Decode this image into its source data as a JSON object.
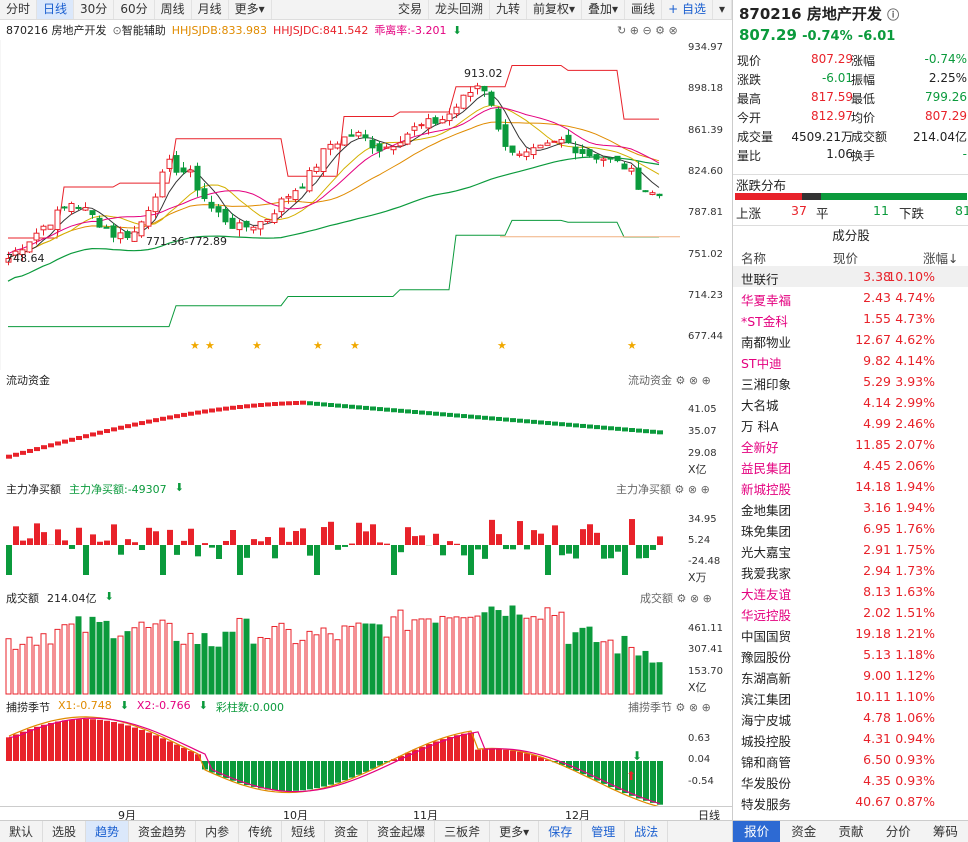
{
  "toolbar": {
    "items": [
      "分时",
      "日线",
      "30分",
      "60分",
      "周线",
      "月线",
      "更多▾"
    ],
    "right_items": [
      "交易",
      "龙头回溯",
      "九转",
      "前复权▾",
      "叠加▾",
      "画线"
    ],
    "add": "自选",
    "active": "日线"
  },
  "main": {
    "name": "870216 房地产开发",
    "assist": "智能辅助",
    "ind1": "HHJSJDB:833.983",
    "ind2": "HHJSJDC:841.542",
    "ind3": "乖离率:-3.201",
    "hi_label": "913.02",
    "lo_label1": "771.36-772.89",
    "lo_label2": "748.64",
    "yticks": [
      "934.97",
      "898.18",
      "861.39",
      "824.60",
      "787.81",
      "751.02",
      "714.23",
      "677.44"
    ]
  },
  "flow": {
    "title": "流动资金",
    "title_r": "流动资金",
    "yticks": [
      "41.05",
      "35.07",
      "29.08"
    ],
    "unit": "X亿"
  },
  "net": {
    "title": "主力净买额",
    "value": "主力净买额:-49307",
    "title_r": "主力净买额",
    "yticks": [
      "34.95",
      "5.24",
      "-24.48"
    ],
    "unit": "X万"
  },
  "vol": {
    "title": "成交额",
    "value": "214.04亿",
    "title_r": "成交额",
    "yticks": [
      "461.11",
      "307.41",
      "153.70"
    ],
    "unit": "X亿"
  },
  "season": {
    "title": "捕捞季节",
    "x1": "X1:-0.748",
    "x2": "X2:-0.766",
    "bars": "彩柱数:0.000",
    "title_r": "捕捞季节",
    "yticks": [
      "0.63",
      "0.04",
      "-0.54"
    ]
  },
  "xaxis": {
    "months": [
      "9月",
      "10月",
      "11月",
      "12月"
    ],
    "right": "日线"
  },
  "bottom": {
    "items": [
      "默认",
      "选股",
      "趋势",
      "资金趋势",
      "内参",
      "传统",
      "短线",
      "资金",
      "资金起爆",
      "三板斧",
      "更多▾"
    ],
    "active": "趋势",
    "right": [
      "保存",
      "管理",
      "战法"
    ]
  },
  "quote": {
    "title": "870216 房地产开发",
    "price": "807.29",
    "pct": "-0.74%",
    "chg": "-6.01",
    "grid": [
      [
        "现价",
        "807.29",
        "涨幅",
        "-0.74%"
      ],
      [
        "涨跌",
        "-6.01",
        "振幅",
        "2.25%"
      ],
      [
        "最高",
        "817.59",
        "最低",
        "799.26"
      ],
      [
        "今开",
        "812.97",
        "均价",
        "807.29"
      ],
      [
        "成交量",
        "4509.21万",
        "成交额",
        "214.04亿"
      ],
      [
        "量比",
        "1.06",
        "换手",
        "-"
      ]
    ],
    "dist_title": "涨跌分布",
    "up_label": "上涨",
    "up": "37",
    "flat_label": "平",
    "flat": "11",
    "down_label": "下跌",
    "down": "81",
    "dist_fracs": [
      37,
      11,
      81
    ]
  },
  "constituents": {
    "title": "成分股",
    "headers": [
      "名称",
      "现价",
      "涨幅↓"
    ],
    "rows": [
      [
        "世联行",
        "3.38",
        "10.10%"
      ],
      [
        "华夏幸福",
        "2.43",
        "4.74%"
      ],
      [
        "*ST金科",
        "1.55",
        "4.73%"
      ],
      [
        "南都物业",
        "12.67",
        "4.62%"
      ],
      [
        "ST中迪",
        "9.82",
        "4.14%"
      ],
      [
        "三湘印象",
        "5.29",
        "3.93%"
      ],
      [
        "大名城",
        "4.14",
        "2.99%"
      ],
      [
        "万  科A",
        "4.99",
        "2.46%"
      ],
      [
        "全新好",
        "11.85",
        "2.07%"
      ],
      [
        "益民集团",
        "4.45",
        "2.06%"
      ],
      [
        "新城控股",
        "14.18",
        "1.94%"
      ],
      [
        "金地集团",
        "3.16",
        "1.94%"
      ],
      [
        "珠免集团",
        "6.95",
        "1.76%"
      ],
      [
        "光大嘉宝",
        "2.91",
        "1.75%"
      ],
      [
        "我爱我家",
        "2.94",
        "1.73%"
      ],
      [
        "大连友谊",
        "8.13",
        "1.63%"
      ],
      [
        "华远控股",
        "2.02",
        "1.51%"
      ],
      [
        "中国国贸",
        "19.18",
        "1.21%"
      ],
      [
        "豫园股份",
        "5.13",
        "1.18%"
      ],
      [
        "东湖高新",
        "9.00",
        "1.12%"
      ],
      [
        "滨江集团",
        "10.11",
        "1.10%"
      ],
      [
        "海宁皮城",
        "4.78",
        "1.06%"
      ],
      [
        "城投控股",
        "4.31",
        "0.94%"
      ],
      [
        "锦和商管",
        "6.50",
        "0.93%"
      ],
      [
        "华发股份",
        "4.35",
        "0.93%"
      ],
      [
        "特发服务",
        "40.67",
        "0.87%"
      ]
    ],
    "pink": [
      1,
      2,
      4,
      8,
      9,
      10,
      15,
      16
    ]
  },
  "rtabs": [
    "报价",
    "资金",
    "贡献",
    "分价",
    "筹码"
  ],
  "rtabs_active": "报价",
  "colors": {
    "up": "#e8222a",
    "down": "#0b9a3c",
    "pink": "#e4007f",
    "accent": "#1a5fd0"
  }
}
